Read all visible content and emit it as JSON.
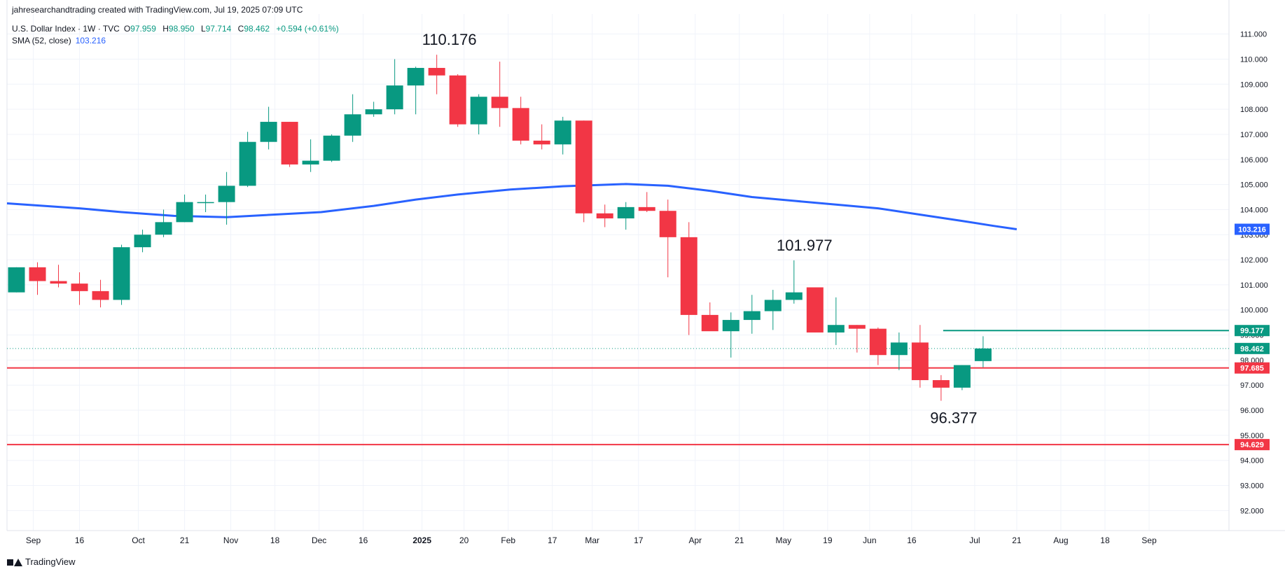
{
  "header": {
    "credit": "jahresearchandtrading created with TradingView.com, Jul 19, 2025 07:09 UTC",
    "symbol": "U.S. Dollar Index · 1W · TVC",
    "o_label": "O",
    "o": "97.959",
    "h_label": "H",
    "h": "98.950",
    "l_label": "L",
    "l": "97.714",
    "c_label": "C",
    "c": "98.462",
    "change": "+0.594 (+0.61%)",
    "sma_label": "SMA (52, close)",
    "sma_value": "103.216"
  },
  "footer": {
    "brand": "TradingView"
  },
  "colors": {
    "up": "#089981",
    "down": "#f23645",
    "sma": "#2962ff",
    "support": "#f23645",
    "resistance": "#089981"
  },
  "chart_data": {
    "type": "candlestick",
    "ylim": [
      91.2,
      111.8
    ],
    "y_ticks": [
      92,
      93,
      94,
      95,
      96,
      97,
      98,
      99,
      100,
      101,
      102,
      103,
      104,
      105,
      106,
      107,
      108,
      109,
      110,
      111
    ],
    "y_tick_labels": [
      "92.000",
      "93.000",
      "94.000",
      "95.000",
      "96.000",
      "97.000",
      "98.000",
      "99.000",
      "100.000",
      "101.000",
      "102.000",
      "103.000",
      "104.000",
      "105.000",
      "106.000",
      "107.000",
      "108.000",
      "109.000",
      "110.000",
      "111.000"
    ],
    "x_range": [
      -0.45,
      57.7
    ],
    "x_labels": [
      {
        "x": 0.8,
        "label": "Sep",
        "bold": false
      },
      {
        "x": 3.0,
        "label": "16",
        "bold": false
      },
      {
        "x": 5.8,
        "label": "Oct",
        "bold": false
      },
      {
        "x": 8.0,
        "label": "21",
        "bold": false
      },
      {
        "x": 10.2,
        "label": "Nov",
        "bold": false
      },
      {
        "x": 12.3,
        "label": "18",
        "bold": false
      },
      {
        "x": 14.4,
        "label": "Dec",
        "bold": false
      },
      {
        "x": 16.5,
        "label": "16",
        "bold": false
      },
      {
        "x": 19.3,
        "label": "2025",
        "bold": true
      },
      {
        "x": 21.3,
        "label": "20",
        "bold": false
      },
      {
        "x": 23.4,
        "label": "Feb",
        "bold": false
      },
      {
        "x": 25.5,
        "label": "17",
        "bold": false
      },
      {
        "x": 27.4,
        "label": "Mar",
        "bold": false
      },
      {
        "x": 29.6,
        "label": "17",
        "bold": false
      },
      {
        "x": 32.3,
        "label": "Apr",
        "bold": false
      },
      {
        "x": 34.4,
        "label": "21",
        "bold": false
      },
      {
        "x": 36.5,
        "label": "May",
        "bold": false
      },
      {
        "x": 38.6,
        "label": "19",
        "bold": false
      },
      {
        "x": 40.6,
        "label": "Jun",
        "bold": false
      },
      {
        "x": 42.6,
        "label": "16",
        "bold": false
      },
      {
        "x": 45.6,
        "label": "Jul",
        "bold": false
      },
      {
        "x": 47.6,
        "label": "21",
        "bold": false
      },
      {
        "x": 49.7,
        "label": "Aug",
        "bold": false
      },
      {
        "x": 51.8,
        "label": "18",
        "bold": false
      },
      {
        "x": 53.9,
        "label": "Sep",
        "bold": false
      }
    ],
    "candles": [
      {
        "o": 100.7,
        "h": 101.7,
        "l": 100.7,
        "c": 101.7
      },
      {
        "o": 101.7,
        "h": 101.9,
        "l": 100.6,
        "c": 101.15
      },
      {
        "o": 101.15,
        "h": 101.8,
        "l": 100.9,
        "c": 101.05
      },
      {
        "o": 101.05,
        "h": 101.5,
        "l": 100.2,
        "c": 100.75
      },
      {
        "o": 100.75,
        "h": 101.2,
        "l": 100.1,
        "c": 100.4
      },
      {
        "o": 100.4,
        "h": 102.6,
        "l": 100.2,
        "c": 102.5
      },
      {
        "o": 102.5,
        "h": 103.2,
        "l": 102.3,
        "c": 103.0
      },
      {
        "o": 103.0,
        "h": 104.0,
        "l": 102.9,
        "c": 103.5
      },
      {
        "o": 103.5,
        "h": 104.6,
        "l": 103.5,
        "c": 104.3
      },
      {
        "o": 104.3,
        "h": 104.6,
        "l": 103.9,
        "c": 104.3
      },
      {
        "o": 104.3,
        "h": 105.5,
        "l": 103.4,
        "c": 104.95
      },
      {
        "o": 104.95,
        "h": 107.1,
        "l": 104.9,
        "c": 106.7
      },
      {
        "o": 106.7,
        "h": 108.1,
        "l": 106.4,
        "c": 107.5
      },
      {
        "o": 107.5,
        "h": 107.5,
        "l": 105.7,
        "c": 105.8
      },
      {
        "o": 105.8,
        "h": 106.8,
        "l": 105.5,
        "c": 105.95
      },
      {
        "o": 105.95,
        "h": 107.0,
        "l": 105.9,
        "c": 106.95
      },
      {
        "o": 106.95,
        "h": 108.6,
        "l": 106.7,
        "c": 107.8
      },
      {
        "o": 107.8,
        "h": 108.3,
        "l": 107.7,
        "c": 108.0
      },
      {
        "o": 108.0,
        "h": 110.0,
        "l": 107.8,
        "c": 108.95
      },
      {
        "o": 108.95,
        "h": 109.7,
        "l": 107.8,
        "c": 109.65
      },
      {
        "o": 109.65,
        "h": 110.176,
        "l": 108.6,
        "c": 109.35
      },
      {
        "o": 109.35,
        "h": 109.4,
        "l": 107.3,
        "c": 107.4
      },
      {
        "o": 107.4,
        "h": 108.6,
        "l": 107.0,
        "c": 108.5
      },
      {
        "o": 108.5,
        "h": 109.9,
        "l": 107.3,
        "c": 108.05
      },
      {
        "o": 108.05,
        "h": 108.5,
        "l": 106.6,
        "c": 106.75
      },
      {
        "o": 106.75,
        "h": 107.4,
        "l": 106.4,
        "c": 106.6
      },
      {
        "o": 106.6,
        "h": 107.7,
        "l": 106.2,
        "c": 107.55
      },
      {
        "o": 107.55,
        "h": 107.55,
        "l": 103.5,
        "c": 103.85
      },
      {
        "o": 103.85,
        "h": 104.2,
        "l": 103.3,
        "c": 103.65
      },
      {
        "o": 103.65,
        "h": 104.3,
        "l": 103.2,
        "c": 104.1
      },
      {
        "o": 104.1,
        "h": 104.7,
        "l": 103.9,
        "c": 103.95
      },
      {
        "o": 103.95,
        "h": 104.4,
        "l": 101.3,
        "c": 102.9
      },
      {
        "o": 102.9,
        "h": 103.5,
        "l": 99.0,
        "c": 99.8
      },
      {
        "o": 99.8,
        "h": 100.3,
        "l": 99.25,
        "c": 99.15
      },
      {
        "o": 99.15,
        "h": 99.9,
        "l": 98.1,
        "c": 99.6
      },
      {
        "o": 99.6,
        "h": 100.6,
        "l": 99.05,
        "c": 99.95
      },
      {
        "o": 99.95,
        "h": 100.8,
        "l": 99.2,
        "c": 100.4
      },
      {
        "o": 100.4,
        "h": 101.977,
        "l": 100.25,
        "c": 100.7
      },
      {
        "o": 100.9,
        "h": 100.9,
        "l": 99.1,
        "c": 99.1
      },
      {
        "o": 99.1,
        "h": 100.5,
        "l": 98.6,
        "c": 99.4
      },
      {
        "o": 99.4,
        "h": 99.4,
        "l": 98.3,
        "c": 99.25
      },
      {
        "o": 99.25,
        "h": 99.3,
        "l": 97.8,
        "c": 98.2
      },
      {
        "o": 98.2,
        "h": 99.1,
        "l": 97.6,
        "c": 98.7
      },
      {
        "o": 98.7,
        "h": 99.4,
        "l": 96.9,
        "c": 97.2
      },
      {
        "o": 97.2,
        "h": 97.4,
        "l": 96.377,
        "c": 96.9
      },
      {
        "o": 96.9,
        "h": 97.8,
        "l": 96.8,
        "c": 97.8
      },
      {
        "o": 97.959,
        "h": 98.95,
        "l": 97.714,
        "c": 98.462
      }
    ],
    "sma": {
      "name": "SMA (52, close)",
      "points": [
        [
          -0.45,
          104.25
        ],
        [
          3,
          104.05
        ],
        [
          5,
          103.9
        ],
        [
          7.5,
          103.75
        ],
        [
          10,
          103.7
        ],
        [
          14.5,
          103.9
        ],
        [
          17,
          104.15
        ],
        [
          19,
          104.4
        ],
        [
          21,
          104.6
        ],
        [
          23.5,
          104.8
        ],
        [
          26,
          104.93
        ],
        [
          29,
          105.02
        ],
        [
          31,
          104.95
        ],
        [
          33,
          104.75
        ],
        [
          35,
          104.5
        ],
        [
          37,
          104.35
        ],
        [
          39,
          104.2
        ],
        [
          41,
          104.05
        ],
        [
          43,
          103.8
        ],
        [
          45,
          103.55
        ],
        [
          46.5,
          103.35
        ],
        [
          47.6,
          103.216
        ]
      ],
      "last_value": 103.216
    },
    "levels": [
      {
        "value": 97.685,
        "label": "97.685",
        "color": "#f23645",
        "x_start": -0.45,
        "width": 2
      },
      {
        "value": 94.629,
        "label": "94.629",
        "color": "#f23645",
        "x_start": -0.45,
        "width": 2
      },
      {
        "value": 99.177,
        "label": "99.177",
        "color": "#089981",
        "x_start": 44.1,
        "width": 2
      }
    ],
    "last_price": {
      "value": 98.462,
      "label": "98.462",
      "color": "#089981"
    },
    "sma_tag": {
      "value": 103.216,
      "label": "103.216",
      "color": "#2962ff"
    },
    "annotations": [
      {
        "text": "110.176",
        "x": 20.6,
        "y": 110.176,
        "pos": "above"
      },
      {
        "text": "101.977",
        "x": 37.5,
        "y": 101.977,
        "pos": "above"
      },
      {
        "text": "96.377",
        "x": 44.6,
        "y": 96.377,
        "pos": "below"
      }
    ]
  }
}
